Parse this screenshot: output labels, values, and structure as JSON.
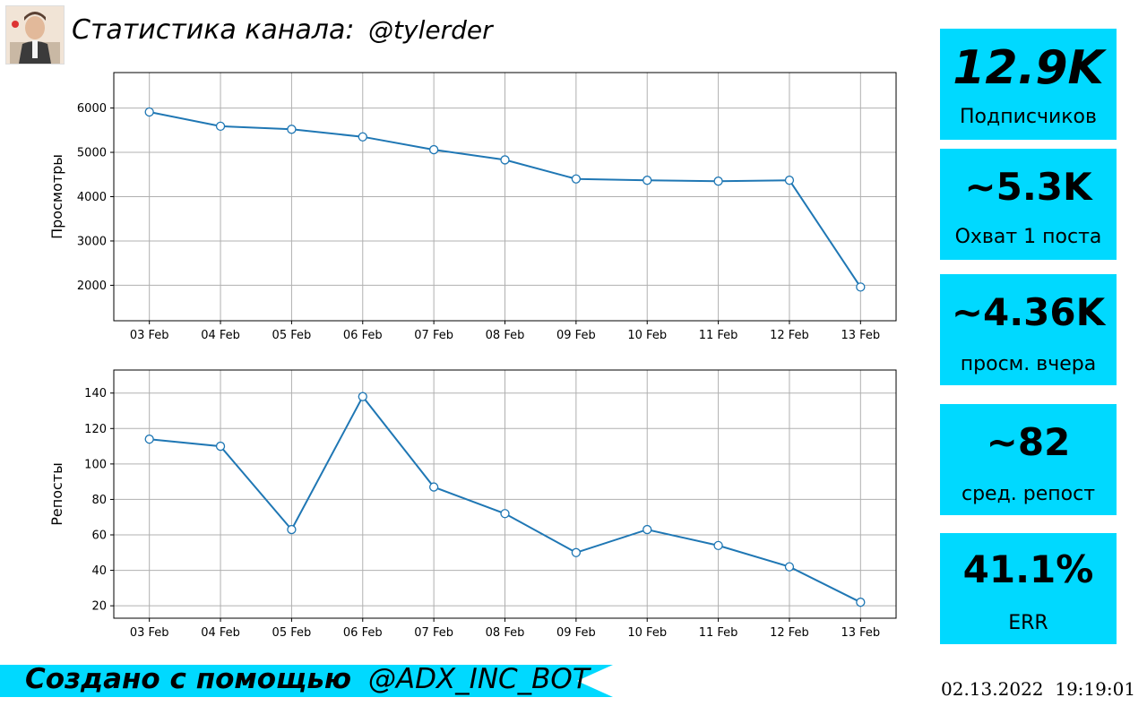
{
  "header": {
    "title": "Статистика канала:",
    "handle": "@tylerder"
  },
  "stats": [
    {
      "value": "12.9K",
      "label": "Подписчиков"
    },
    {
      "value": "~5.3K",
      "label": "Охват 1 поста"
    },
    {
      "value": "~4.36K",
      "label": "просм. вчера"
    },
    {
      "value": "~82",
      "label": "сред. репост"
    },
    {
      "value": "41.1%",
      "label": "ERR"
    }
  ],
  "footer": {
    "created_with": "Создано с помощью",
    "bot": "@ADX_INC_BOT",
    "timestamp": "02.13.2022  19:19:01"
  },
  "colors": {
    "accent": "#00d9ff",
    "line": "#1f77b4",
    "grid": "#b0b0b0"
  },
  "chart_data": [
    {
      "type": "line",
      "title": "",
      "xlabel": "",
      "ylabel": "Просмотры",
      "categories": [
        "03 Feb",
        "04 Feb",
        "05 Feb",
        "06 Feb",
        "07 Feb",
        "08 Feb",
        "09 Feb",
        "10 Feb",
        "11 Feb",
        "12 Feb",
        "13 Feb"
      ],
      "values": [
        5910,
        5590,
        5520,
        5350,
        5060,
        4830,
        4400,
        4370,
        4350,
        4370,
        1960
      ],
      "yticks": [
        2000,
        3000,
        4000,
        5000,
        6000
      ],
      "ylim": [
        1200,
        6800
      ],
      "grid": true
    },
    {
      "type": "line",
      "title": "",
      "xlabel": "",
      "ylabel": "Репосты",
      "categories": [
        "03 Feb",
        "04 Feb",
        "05 Feb",
        "06 Feb",
        "07 Feb",
        "08 Feb",
        "09 Feb",
        "10 Feb",
        "11 Feb",
        "12 Feb",
        "13 Feb"
      ],
      "values": [
        114,
        110,
        63,
        138,
        87,
        72,
        50,
        63,
        54,
        42,
        22
      ],
      "yticks": [
        20,
        40,
        60,
        80,
        100,
        120,
        140
      ],
      "ylim": [
        13,
        153
      ],
      "grid": true
    }
  ]
}
